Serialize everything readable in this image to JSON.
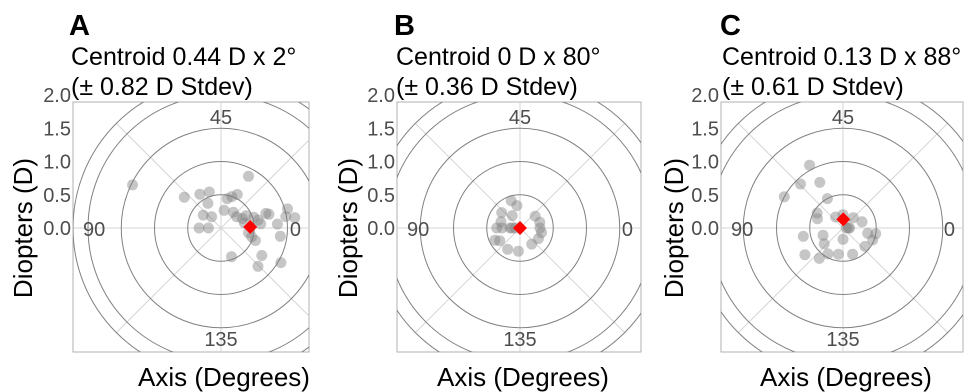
{
  "chart_data": [
    {
      "type": "scatter",
      "coord": "polar",
      "panel_label": "A",
      "title_line1": "Centroid 0.44 D x 2°",
      "title_line2": "(± 0.82 D Stdev)",
      "xlabel": "Axis (Degrees)",
      "ylabel": "Diopters (D)",
      "yticks": [
        "0.0",
        "0.5",
        "1.0",
        "1.5",
        "2.0"
      ],
      "ylim": [
        0,
        2.0
      ],
      "angle_labels": [
        "0",
        "45",
        "90",
        "135"
      ],
      "point_color": "#808080",
      "centroid_color": "#ff0000",
      "centroid": {
        "r": 0.44,
        "deg": 2
      },
      "points": [
        {
          "r": 0.19,
          "deg": 180
        },
        {
          "r": 0.33,
          "deg": 180
        },
        {
          "r": 0.33,
          "deg": 144
        },
        {
          "r": 0.72,
          "deg": 140
        },
        {
          "r": 0.22,
          "deg": 130
        },
        {
          "r": 0.42,
          "deg": 118
        },
        {
          "r": 0.6,
          "deg": 122
        },
        {
          "r": 0.57,
          "deg": 108
        },
        {
          "r": 1.48,
          "deg": 154
        },
        {
          "r": 0.27,
          "deg": 80
        },
        {
          "r": 0.45,
          "deg": 78
        },
        {
          "r": 0.5,
          "deg": 71
        },
        {
          "r": 0.56,
          "deg": 64
        },
        {
          "r": 0.88,
          "deg": 62
        },
        {
          "r": 0.3,
          "deg": 52
        },
        {
          "r": 0.29,
          "deg": 36
        },
        {
          "r": 0.35,
          "deg": 24
        },
        {
          "r": 0.42,
          "deg": 26
        },
        {
          "r": 0.36,
          "deg": 12
        },
        {
          "r": 0.52,
          "deg": 18
        },
        {
          "r": 0.57,
          "deg": 12
        },
        {
          "r": 0.6,
          "deg": 6
        },
        {
          "r": 0.71,
          "deg": 18
        },
        {
          "r": 0.75,
          "deg": 16
        },
        {
          "r": 0.85,
          "deg": 4
        },
        {
          "r": 1.04,
          "deg": 16
        },
        {
          "r": 0.99,
          "deg": 10
        },
        {
          "r": 1.12,
          "deg": 8
        },
        {
          "r": 0.9,
          "deg": -8
        },
        {
          "r": 0.42,
          "deg": -10
        },
        {
          "r": 0.48,
          "deg": -16
        },
        {
          "r": 0.55,
          "deg": -20
        },
        {
          "r": 0.74,
          "deg": -34
        },
        {
          "r": 0.8,
          "deg": -46
        },
        {
          "r": 1.04,
          "deg": -30
        },
        {
          "r": 0.46,
          "deg": -70
        }
      ]
    },
    {
      "type": "scatter",
      "coord": "polar",
      "panel_label": "B",
      "title_line1": "Centroid 0 D x 80°",
      "title_line2": "(± 0.36 D Stdev)",
      "xlabel": "Axis (Degrees)",
      "ylabel": "Diopters (D)",
      "yticks": [
        "0.0",
        "0.5",
        "1.0",
        "1.5",
        "2.0"
      ],
      "ylim": [
        0,
        2.0
      ],
      "angle_labels": [
        "0",
        "45",
        "90",
        "135"
      ],
      "point_color": "#808080",
      "centroid_color": "#ff0000",
      "centroid": {
        "r": 0.0,
        "deg": 80
      },
      "points": [
        {
          "r": 0.35,
          "deg": 180
        },
        {
          "r": 0.27,
          "deg": 180
        },
        {
          "r": 0.15,
          "deg": 180
        },
        {
          "r": 0.12,
          "deg": 180
        },
        {
          "r": 0.07,
          "deg": 180
        },
        {
          "r": 0.3,
          "deg": 162
        },
        {
          "r": 0.36,
          "deg": 140
        },
        {
          "r": 0.22,
          "deg": 122
        },
        {
          "r": 0.43,
          "deg": 108
        },
        {
          "r": 0.34,
          "deg": 98
        },
        {
          "r": 0.29,
          "deg": 38
        },
        {
          "r": 0.31,
          "deg": 16
        },
        {
          "r": 0.3,
          "deg": 0
        },
        {
          "r": 0.33,
          "deg": -12
        },
        {
          "r": 0.32,
          "deg": -30
        },
        {
          "r": 0.3,
          "deg": -54
        },
        {
          "r": 0.35,
          "deg": -94
        },
        {
          "r": 0.37,
          "deg": -120
        },
        {
          "r": 0.42,
          "deg": -154
        },
        {
          "r": 0.36,
          "deg": -148
        }
      ]
    },
    {
      "type": "scatter",
      "coord": "polar",
      "panel_label": "C",
      "title_line1": "Centroid 0.13 D x 88°",
      "title_line2": "(± 0.61 D Stdev)",
      "xlabel": "Axis (Degrees)",
      "ylabel": "Diopters (D)",
      "yticks": [
        "0.0",
        "0.5",
        "1.0",
        "1.5",
        "2.0"
      ],
      "ylim": [
        0,
        2.0
      ],
      "angle_labels": [
        "0",
        "45",
        "90",
        "135"
      ],
      "point_color": "#808080",
      "centroid_color": "#ff0000",
      "centroid": {
        "r": 0.13,
        "deg": 88
      },
      "points": [
        {
          "r": 0.08,
          "deg": 0
        },
        {
          "r": 0.05,
          "deg": 0
        },
        {
          "r": 0.1,
          "deg": 0
        },
        {
          "r": 0.41,
          "deg": 160
        },
        {
          "r": 0.45,
          "deg": 150
        },
        {
          "r": 1.0,
          "deg": 152
        },
        {
          "r": 0.92,
          "deg": 134
        },
        {
          "r": 1.07,
          "deg": 118
        },
        {
          "r": 0.77,
          "deg": 117
        },
        {
          "r": 0.5,
          "deg": 118
        },
        {
          "r": 0.2,
          "deg": 124
        },
        {
          "r": 0.2,
          "deg": 90
        },
        {
          "r": 0.22,
          "deg": 45
        },
        {
          "r": 0.3,
          "deg": 18
        },
        {
          "r": 0.38,
          "deg": -12
        },
        {
          "r": 0.5,
          "deg": -10
        },
        {
          "r": 0.48,
          "deg": -22
        },
        {
          "r": 0.43,
          "deg": -40
        },
        {
          "r": 0.42,
          "deg": -70
        },
        {
          "r": 0.45,
          "deg": -120
        },
        {
          "r": 0.58,
          "deg": -128
        },
        {
          "r": 0.7,
          "deg": -145
        },
        {
          "r": 0.61,
          "deg": -168
        },
        {
          "r": 0.32,
          "deg": -160
        },
        {
          "r": 0.37,
          "deg": -140
        },
        {
          "r": 0.17,
          "deg": -90
        },
        {
          "r": 0.4,
          "deg": -100
        }
      ]
    }
  ]
}
